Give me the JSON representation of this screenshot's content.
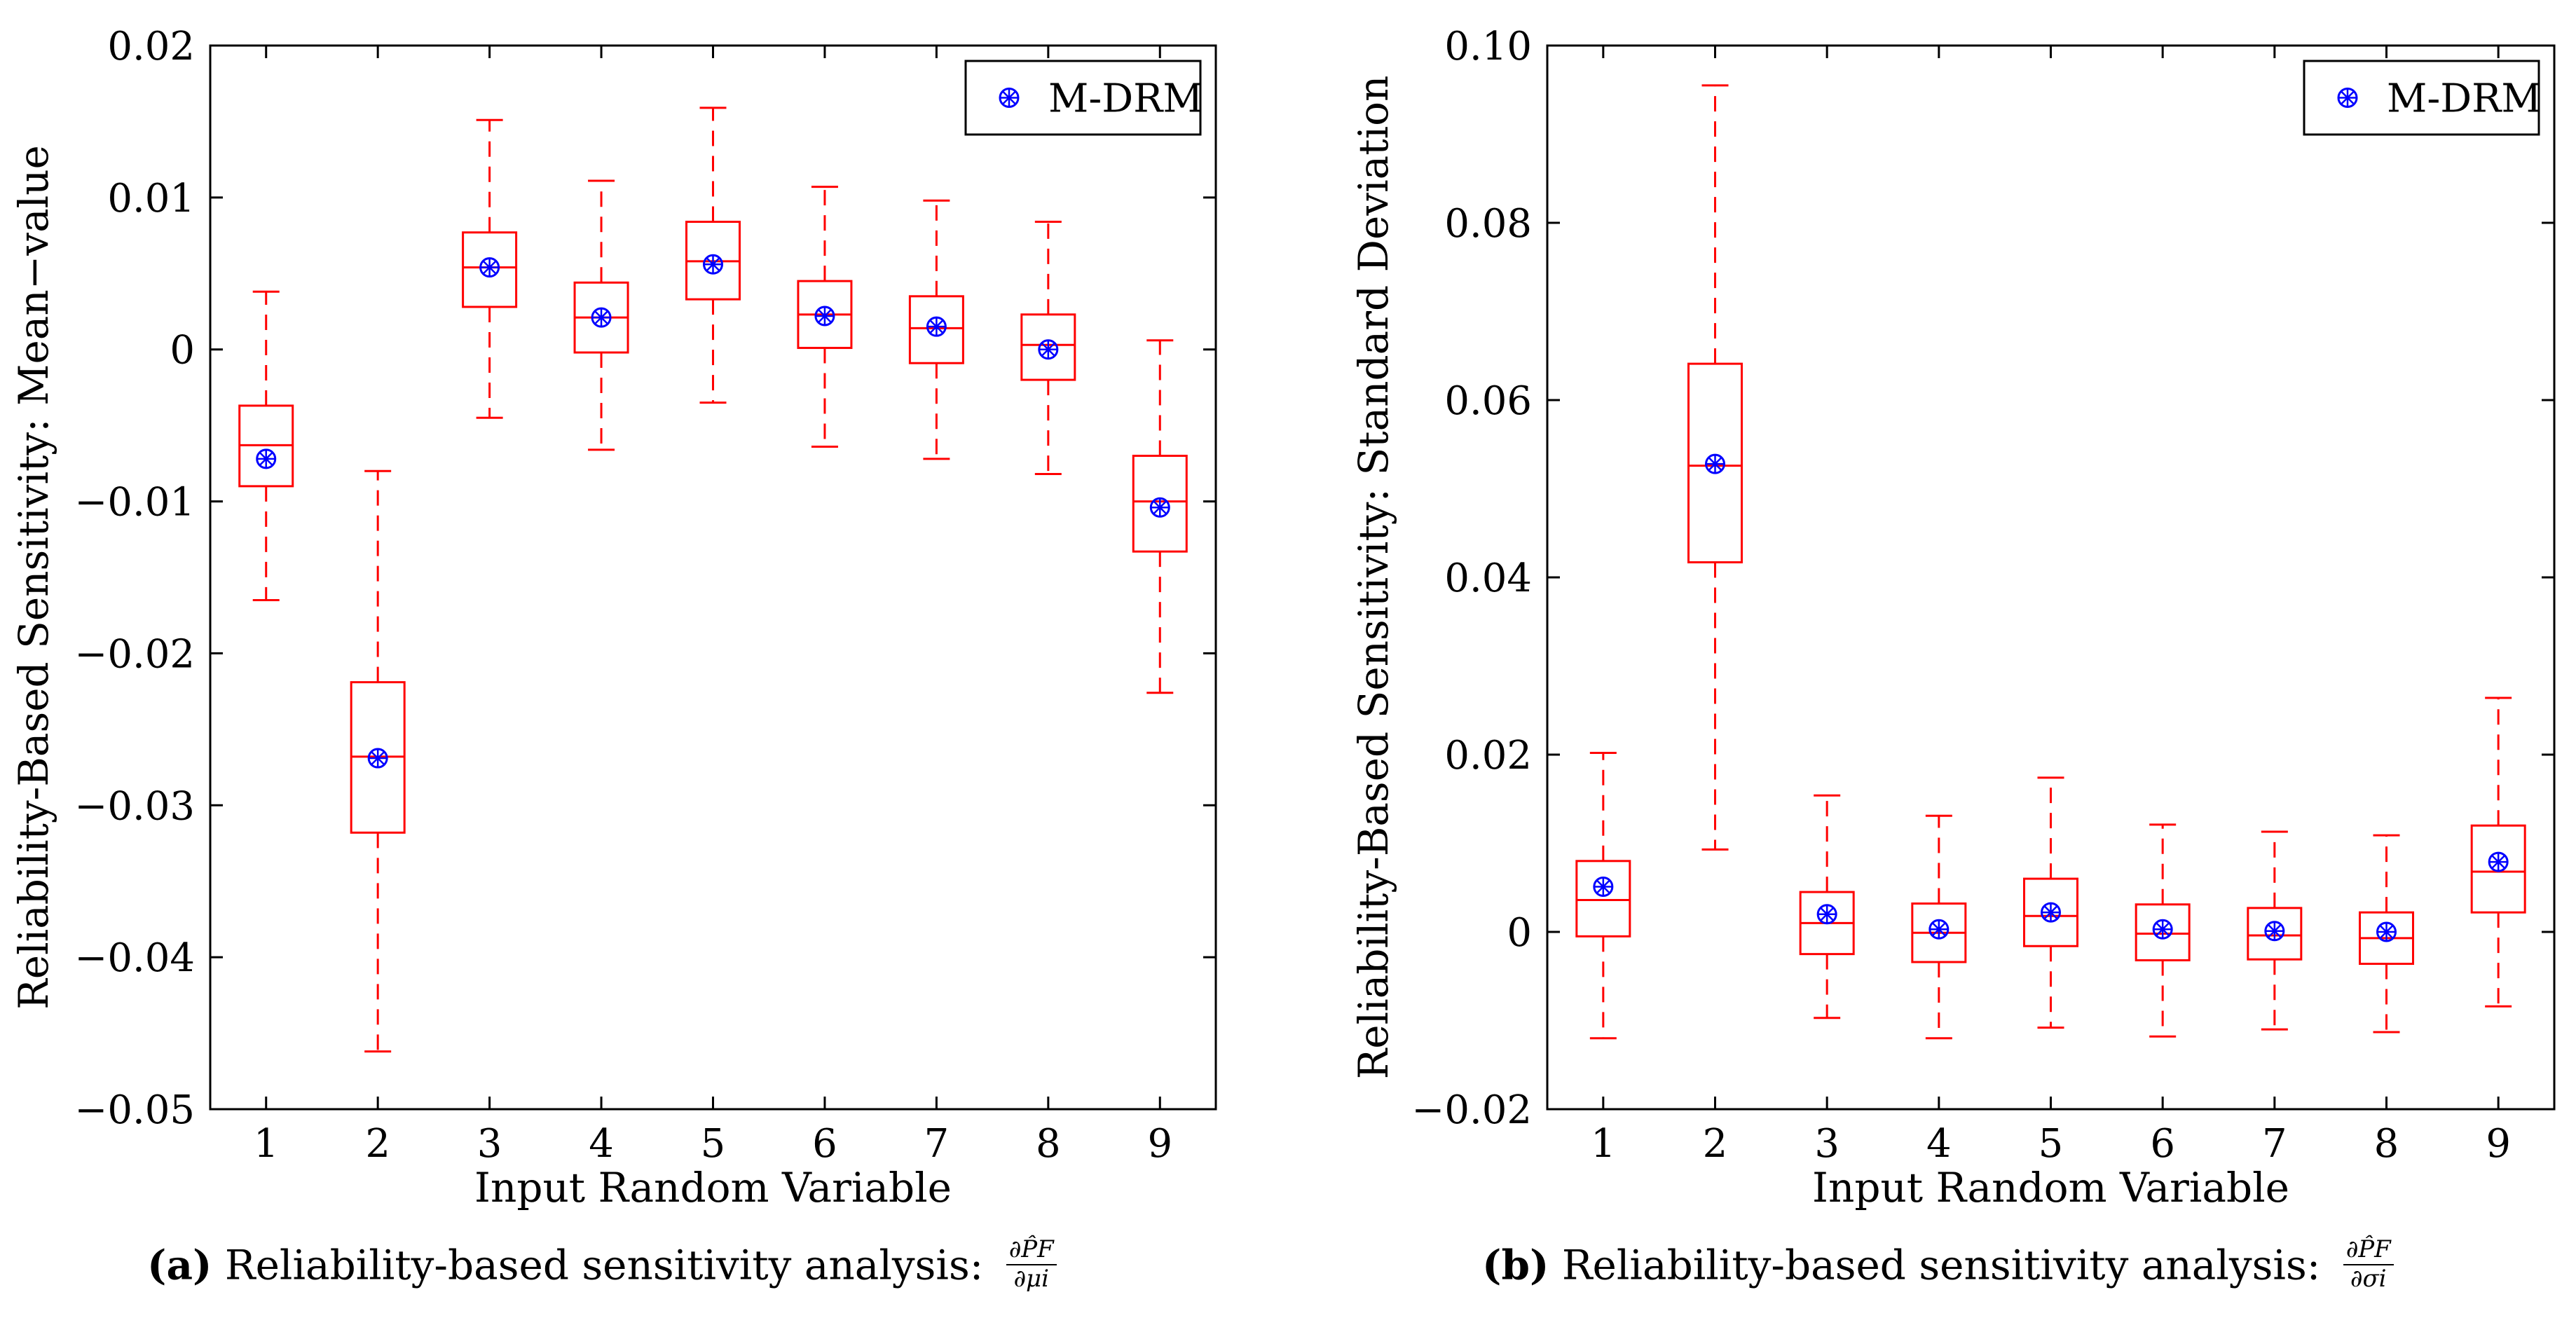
{
  "chart_data": [
    {
      "type": "box",
      "xlabel": "Input Random Variable",
      "ylabel": "Reliability-Based Sensitivity: Mean−value",
      "categories": [
        "1",
        "2",
        "3",
        "4",
        "5",
        "6",
        "7",
        "8",
        "9"
      ],
      "ylim": [
        -0.05,
        0.02
      ],
      "yticks": [
        "0.02",
        "0.01",
        "0",
        "−0.01",
        "−0.02",
        "−0.03",
        "−0.04",
        "−0.05"
      ],
      "ytick_values": [
        0.02,
        0.01,
        0,
        -0.01,
        -0.02,
        -0.03,
        -0.04,
        -0.05
      ],
      "grid": false,
      "legend": {
        "label": "M-DRM",
        "placement": "top-right"
      },
      "boxes": [
        {
          "whisker_low": -0.0165,
          "q1": -0.009,
          "median": -0.0063,
          "q3": -0.0037,
          "whisker_high": 0.0038
        },
        {
          "whisker_low": -0.0462,
          "q1": -0.0318,
          "median": -0.0268,
          "q3": -0.0219,
          "whisker_high": -0.008
        },
        {
          "whisker_low": -0.0045,
          "q1": 0.0028,
          "median": 0.0054,
          "q3": 0.0077,
          "whisker_high": 0.0151
        },
        {
          "whisker_low": -0.0066,
          "q1": -0.0002,
          "median": 0.0021,
          "q3": 0.0044,
          "whisker_high": 0.0111
        },
        {
          "whisker_low": -0.0035,
          "q1": 0.0033,
          "median": 0.0058,
          "q3": 0.0084,
          "whisker_high": 0.0159
        },
        {
          "whisker_low": -0.0064,
          "q1": 0.0001,
          "median": 0.0023,
          "q3": 0.0045,
          "whisker_high": 0.0107
        },
        {
          "whisker_low": -0.0072,
          "q1": -0.0009,
          "median": 0.0014,
          "q3": 0.0035,
          "whisker_high": 0.0098
        },
        {
          "whisker_low": -0.0082,
          "q1": -0.002,
          "median": 0.0003,
          "q3": 0.0023,
          "whisker_high": 0.0084
        },
        {
          "whisker_low": -0.0226,
          "q1": -0.0133,
          "median": -0.01,
          "q3": -0.007,
          "whisker_high": 0.0006
        }
      ],
      "mdrm_values": [
        -0.0072,
        -0.0269,
        0.0054,
        0.0021,
        0.0056,
        0.0022,
        0.0015,
        0.0,
        -0.0104
      ],
      "colors": {
        "box": "#ff0000",
        "marker": "#0000ff"
      }
    },
    {
      "type": "box",
      "xlabel": "Input Random Variable",
      "ylabel": "Reliability-Based Sensitivity: Standard Deviation",
      "categories": [
        "1",
        "2",
        "3",
        "4",
        "5",
        "6",
        "7",
        "8",
        "9"
      ],
      "ylim": [
        -0.02,
        0.1
      ],
      "yticks": [
        "0.10",
        "0.08",
        "0.06",
        "0.04",
        "0.02",
        "0",
        "−0.02"
      ],
      "ytick_values": [
        0.1,
        0.08,
        0.06,
        0.04,
        0.02,
        0,
        -0.02
      ],
      "grid": false,
      "legend": {
        "label": "M-DRM",
        "placement": "top-right"
      },
      "boxes": [
        {
          "whisker_low": -0.012,
          "q1": -0.0005,
          "median": 0.0036,
          "q3": 0.008,
          "whisker_high": 0.0202
        },
        {
          "whisker_low": 0.0093,
          "q1": 0.0417,
          "median": 0.0526,
          "q3": 0.0641,
          "whisker_high": 0.0955
        },
        {
          "whisker_low": -0.0097,
          "q1": -0.0025,
          "median": 0.001,
          "q3": 0.0045,
          "whisker_high": 0.0154
        },
        {
          "whisker_low": -0.012,
          "q1": -0.0034,
          "median": -0.0001,
          "q3": 0.0032,
          "whisker_high": 0.0131
        },
        {
          "whisker_low": -0.0108,
          "q1": -0.0016,
          "median": 0.0018,
          "q3": 0.006,
          "whisker_high": 0.0174
        },
        {
          "whisker_low": -0.0118,
          "q1": -0.0032,
          "median": -0.0002,
          "q3": 0.0031,
          "whisker_high": 0.0121
        },
        {
          "whisker_low": -0.011,
          "q1": -0.0031,
          "median": -0.0004,
          "q3": 0.0027,
          "whisker_high": 0.0113
        },
        {
          "whisker_low": -0.0113,
          "q1": -0.0036,
          "median": -0.0007,
          "q3": 0.0022,
          "whisker_high": 0.0109
        },
        {
          "whisker_low": -0.0084,
          "q1": 0.0022,
          "median": 0.0068,
          "q3": 0.012,
          "whisker_high": 0.0264
        }
      ],
      "mdrm_values": [
        0.0051,
        0.0528,
        0.002,
        0.0003,
        0.0022,
        0.0003,
        0.0001,
        0.0,
        0.0079
      ],
      "colors": {
        "box": "#ff0000",
        "marker": "#0000ff"
      }
    }
  ],
  "captions": [
    {
      "label": "(a)",
      "text": "Reliability-based sensitivity analysis:",
      "frac_num": "∂P̂F",
      "frac_den": "∂μi"
    },
    {
      "label": "(b)",
      "text": "Reliability-based sensitivity analysis:",
      "frac_num": "∂P̂F",
      "frac_den": "∂σi"
    }
  ]
}
